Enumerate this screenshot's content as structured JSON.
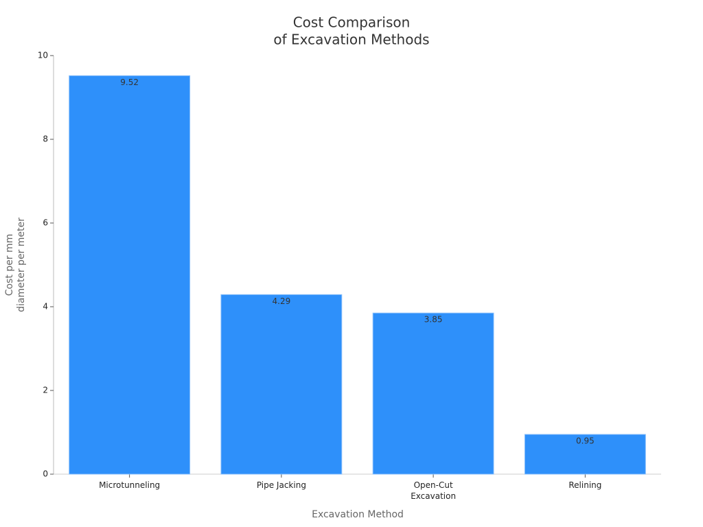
{
  "chart_data": {
    "type": "bar",
    "title": [
      "Cost Comparison",
      "of Excavation Methods"
    ],
    "x_label": "Excavation Method",
    "y_label": [
      "Cost per mm",
      "diameter per meter"
    ],
    "categories": [
      "Microtunneling",
      "Pipe Jacking",
      "Open-Cut Excavation",
      "Relining"
    ],
    "values": [
      9.52,
      4.29,
      3.85,
      0.95
    ],
    "color": "#2e90fa",
    "ylim": [
      0,
      10
    ],
    "yticks": [
      0,
      2,
      4,
      6,
      8,
      10
    ],
    "grid": false,
    "value_labels_shown": true
  }
}
